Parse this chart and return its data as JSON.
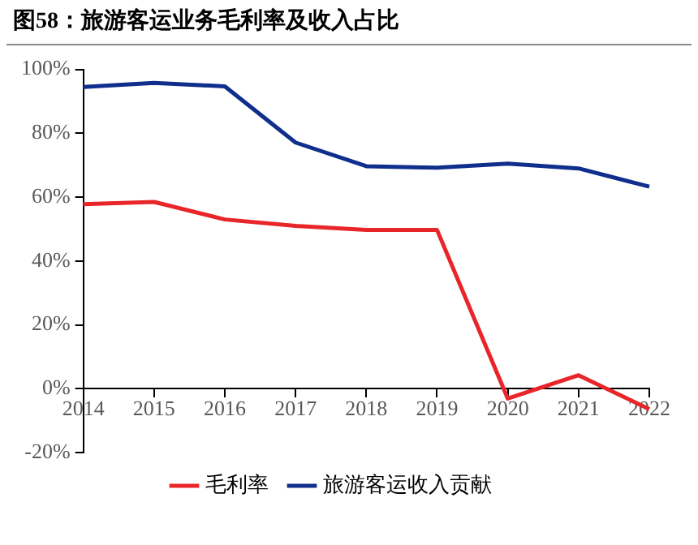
{
  "chart_data": {
    "type": "line",
    "title": "图58：旅游客运业务毛利率及收入占比",
    "categories": [
      "2014",
      "2015",
      "2016",
      "2017",
      "2018",
      "2019",
      "2020",
      "2021",
      "2022"
    ],
    "series": [
      {
        "name": "毛利率",
        "color": "#e8262a",
        "values": [
          57.8,
          58.5,
          53.0,
          51.0,
          49.7,
          49.7,
          -3.1,
          4.2,
          -6.4
        ]
      },
      {
        "name": "旅游客运收入贡献",
        "color": "#102f8c",
        "values": [
          94.5,
          95.8,
          94.7,
          77.1,
          69.7,
          69.2,
          70.5,
          69.0,
          63.3
        ]
      }
    ],
    "ylim": [
      -20,
      100
    ],
    "yticks": [
      {
        "value": -20,
        "label": "-20%"
      },
      {
        "value": 0,
        "label": "0%"
      },
      {
        "value": 20,
        "label": "20%"
      },
      {
        "value": 40,
        "label": "40%"
      },
      {
        "value": 60,
        "label": "60%"
      },
      {
        "value": 80,
        "label": "80%"
      },
      {
        "value": 100,
        "label": "100%"
      }
    ],
    "grid": false,
    "legend": "bottom",
    "marker": "none",
    "line_style": "solid"
  }
}
